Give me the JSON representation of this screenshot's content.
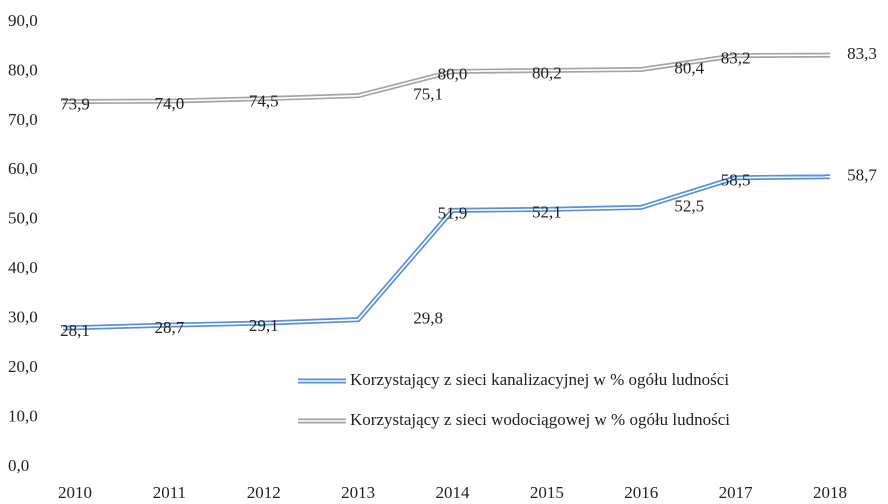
{
  "chart_data": {
    "type": "line",
    "categories": [
      "2010",
      "2011",
      "2012",
      "2013",
      "2014",
      "2015",
      "2016",
      "2017",
      "2018"
    ],
    "series": [
      {
        "name": "Korzystający z sieci kanalizacyjnej w % ogółu ludności",
        "color": "#5b8fd6",
        "values": [
          28.1,
          28.7,
          29.1,
          29.8,
          51.9,
          52.1,
          52.5,
          58.5,
          58.7
        ],
        "value_labels": [
          "28,1",
          "28,7",
          "29,1",
          "29,8",
          "51,9",
          "52,1",
          "52,5",
          "58,5",
          "58,7"
        ]
      },
      {
        "name": "Korzystający z sieci wodociągowej w % ogółu ludności",
        "color": "#a9a2ab",
        "values": [
          73.9,
          74.0,
          74.5,
          75.1,
          80.0,
          80.2,
          80.4,
          83.2,
          83.3
        ],
        "value_labels": [
          "73,9",
          "74,0",
          "74,5",
          "75,1",
          "80,0",
          "80,2",
          "80,4",
          "83,2",
          "83,3"
        ]
      }
    ],
    "ylim": [
      0,
      90
    ],
    "yticks": [
      {
        "value": 0,
        "label": "0,0"
      },
      {
        "value": 10,
        "label": "10,0"
      },
      {
        "value": 20,
        "label": "20,0"
      },
      {
        "value": 30,
        "label": "30,0"
      },
      {
        "value": 40,
        "label": "40,0"
      },
      {
        "value": 50,
        "label": "50,0"
      },
      {
        "value": 60,
        "label": "60,0"
      },
      {
        "value": 70,
        "label": "70,0"
      },
      {
        "value": 80,
        "label": "80,0"
      },
      {
        "value": 90,
        "label": "90,0"
      }
    ],
    "grid": false
  }
}
